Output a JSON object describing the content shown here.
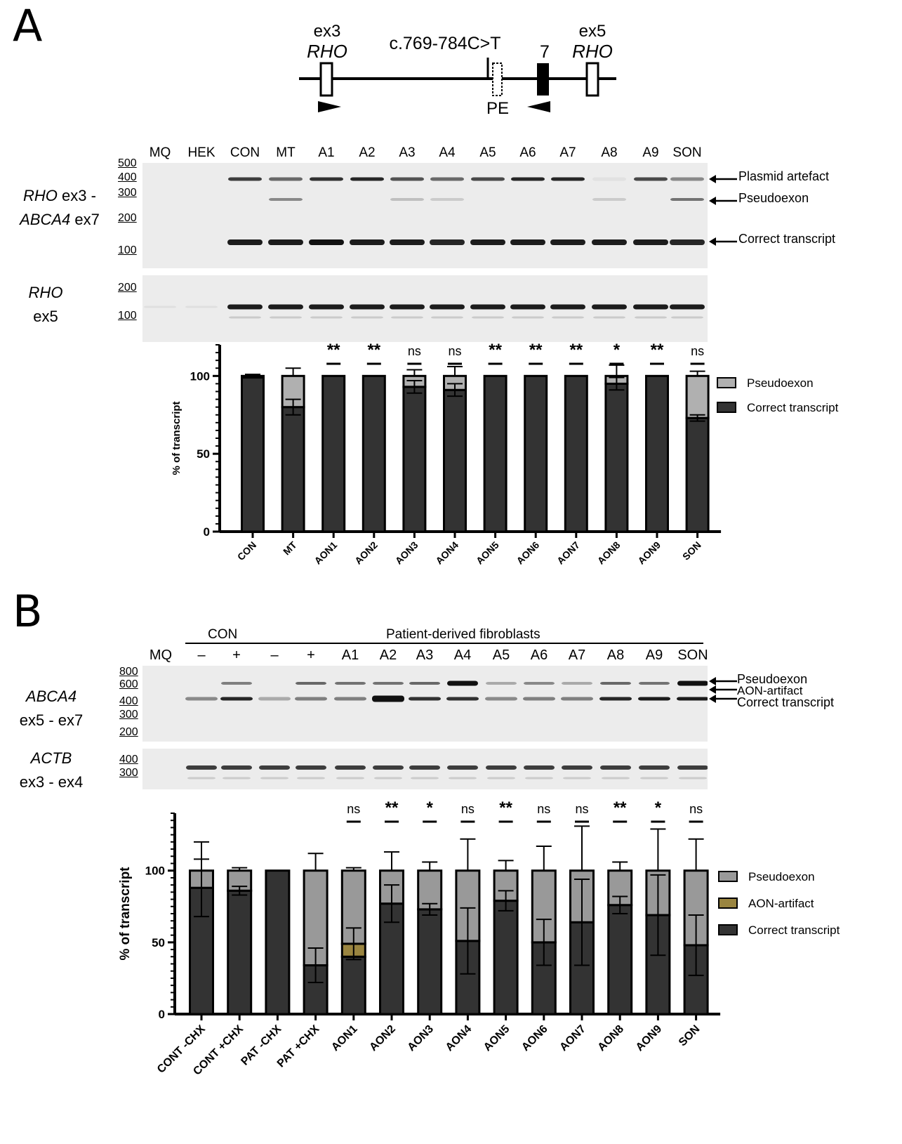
{
  "panelA": {
    "letter": "A",
    "schematic": {
      "ex3_label": "ex3",
      "rho_label": "RHO",
      "variant_label": "c.769-784C>T",
      "exon7_label": "7",
      "ex5_label": "ex5",
      "rho5_label": "RHO",
      "pe_label": "PE"
    },
    "gel_lanes": [
      "MQ",
      "HEK",
      "CON",
      "MT",
      "A1",
      "A2",
      "A3",
      "A4",
      "A5",
      "A6",
      "A7",
      "A8",
      "A9",
      "SON"
    ],
    "gel1": {
      "row_label_1": "RHO",
      "row_label_1b": " ex3 -",
      "row_label_2": "ABCA4",
      "row_label_2b": " ex7",
      "markers": [
        "500",
        "400",
        "300",
        "200",
        "100"
      ],
      "arrows": [
        "Plasmid artefact",
        "Pseudoexon",
        "Correct transcript"
      ]
    },
    "gel2": {
      "row_label_1": "RHO",
      "row_label_2": "ex5",
      "markers": [
        "200",
        "100"
      ]
    }
  },
  "panelB": {
    "letter": "B",
    "group_con": "CON",
    "group_patient": "Patient-derived fibroblasts",
    "gel_lanes": [
      "MQ",
      "–",
      "+",
      "–",
      "+",
      "A1",
      "A2",
      "A3",
      "A4",
      "A5",
      "A6",
      "A7",
      "A8",
      "A9",
      "SON"
    ],
    "gel1": {
      "row_label_1": "ABCA4",
      "row_label_2": "ex5 - ex7",
      "markers": [
        "800",
        "600",
        "400",
        "300",
        "200"
      ],
      "arrows": [
        "Pseudoexon",
        "AON-artifact",
        "Correct transcript"
      ]
    },
    "gel2": {
      "row_label_1": "ACTB",
      "row_label_2": "ex3 - ex4",
      "markers": [
        "400",
        "300"
      ]
    }
  },
  "chart_data": [
    {
      "type": "bar",
      "stacked": true,
      "panel": "A",
      "categories": [
        "CON",
        "MT",
        "AON1",
        "AON2",
        "AON3",
        "AON4",
        "AON5",
        "AON6",
        "AON7",
        "AON8",
        "AON9",
        "SON"
      ],
      "series": [
        {
          "name": "Correct transcript",
          "color": "#333333",
          "values": [
            99,
            80,
            100,
            100,
            93,
            91,
            100,
            100,
            100,
            95,
            100,
            73
          ]
        },
        {
          "name": "Pseudoexon",
          "color": "#b0b0b0",
          "values": [
            1,
            20,
            0,
            0,
            7,
            9,
            0,
            0,
            0,
            5,
            0,
            27
          ]
        }
      ],
      "error_top": [
        1,
        5,
        0,
        0,
        4,
        6,
        0,
        0,
        0,
        7,
        0,
        3
      ],
      "error_inner": [
        0,
        5,
        0,
        0,
        4,
        4,
        0,
        0,
        0,
        4,
        0,
        2
      ],
      "significance": [
        "",
        "",
        "**",
        "**",
        "ns",
        "ns",
        "**",
        "**",
        "**",
        "*",
        "**",
        "ns"
      ],
      "yticks": [
        "0",
        "50",
        "100"
      ],
      "ylabel": "% of transcript",
      "ylim": [
        0,
        120
      ],
      "legend": [
        "Pseudoexon",
        "Correct transcript"
      ]
    },
    {
      "type": "bar",
      "stacked": true,
      "panel": "B",
      "categories": [
        "CONT -CHX",
        "CONT +CHX",
        "PAT -CHX",
        "PAT +CHX",
        "AON1",
        "AON2",
        "AON3",
        "AON4",
        "AON5",
        "AON6",
        "AON7",
        "AON8",
        "AON9",
        "SON"
      ],
      "series": [
        {
          "name": "Correct transcript",
          "color": "#333333",
          "values": [
            88,
            86,
            100,
            34,
            40,
            77,
            73,
            51,
            79,
            50,
            64,
            76,
            69,
            48
          ]
        },
        {
          "name": "AON-artifact",
          "color": "#9a8540",
          "values": [
            0,
            0,
            0,
            0,
            9,
            0,
            0,
            0,
            0,
            0,
            0,
            0,
            0,
            0
          ]
        },
        {
          "name": "Pseudoexon",
          "color": "#999999",
          "values": [
            12,
            14,
            0,
            66,
            51,
            23,
            27,
            49,
            21,
            50,
            36,
            24,
            31,
            52
          ]
        }
      ],
      "error_top": [
        20,
        2,
        0,
        12,
        2,
        13,
        6,
        22,
        7,
        17,
        31,
        6,
        29,
        22
      ],
      "error_inner": [
        20,
        3,
        0,
        12,
        11,
        13,
        4,
        23,
        7,
        16,
        30,
        6,
        28,
        21
      ],
      "significance": [
        "",
        "",
        "",
        "",
        "ns",
        "**",
        "*",
        "ns",
        "**",
        "ns",
        "ns",
        "**",
        "*",
        "ns"
      ],
      "yticks": [
        "0",
        "50",
        "100"
      ],
      "ylabel": "% of transcript",
      "ylim": [
        0,
        140
      ],
      "legend": [
        "Pseudoexon",
        "AON-artifact",
        "Correct transcript"
      ]
    }
  ]
}
